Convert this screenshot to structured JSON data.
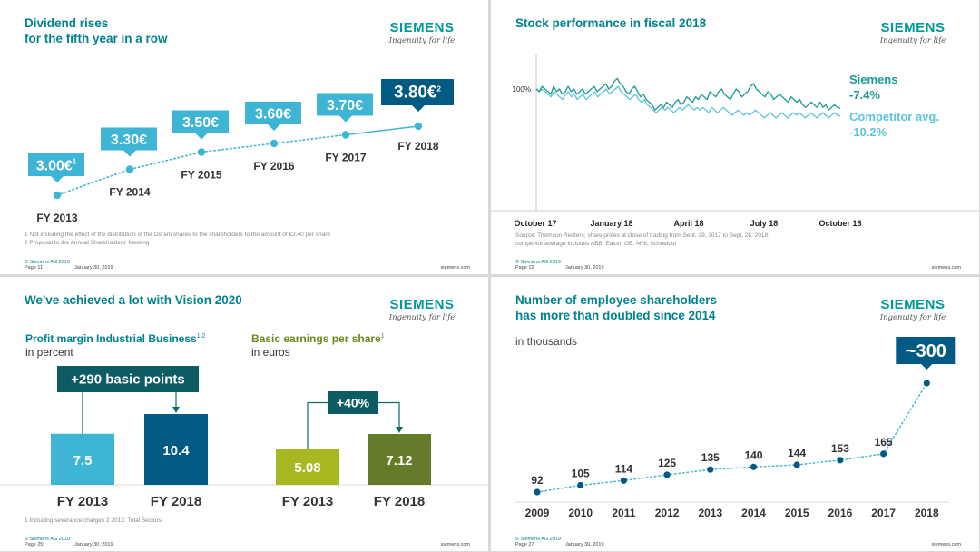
{
  "common": {
    "logo_word": "SIEMENS",
    "logo_tag": "Ingenuity for life",
    "copyright": "© Siemens AG 2019",
    "date": "January 30, 2019",
    "site": "siemens.com"
  },
  "slide1": {
    "title": "Dividend rises\nfor the fifth year in a row",
    "page": "Page 11",
    "notes": "1 Not including the effect of the distribution of the Osram shares to the shareholders to the amount of €2.40 per share\n2 Proposal to the Annual Shareholders' Meeting",
    "chart_data": {
      "type": "line",
      "categories": [
        "FY 2013",
        "FY 2014",
        "FY 2015",
        "FY 2016",
        "FY 2017",
        "FY 2018"
      ],
      "values": [
        3.0,
        3.3,
        3.5,
        3.6,
        3.7,
        3.8
      ],
      "value_labels": [
        "3.00€",
        "3.30€",
        "3.50€",
        "3.60€",
        "3.70€",
        "3.80€"
      ],
      "footnote_marks": [
        "1",
        "",
        "",
        "",
        "",
        "2"
      ],
      "colors": {
        "callout": "#3fb5d6",
        "final": "#005a84",
        "line": "#3fb5d6"
      }
    }
  },
  "slide2": {
    "title": "Stock performance in fiscal 2018",
    "page": "Page 12",
    "notes": "Source: Thomson Reuters; share prices at close of trading from Sept. 29, 2017 to Sept. 28, 2018;\ncompetitor average includes ABB, Eaton, GE, MHI, Schneider",
    "chart_data": {
      "type": "line",
      "y_tick_label": "100%",
      "x_tick_labels": [
        "October 17",
        "January 18",
        "April 18",
        "July 18",
        "October 18"
      ],
      "series": [
        {
          "name": "Siemens",
          "change": "-7.4%",
          "color": "#1a9a94",
          "values": [
            100,
            99,
            101,
            100,
            99,
            98,
            101,
            99,
            100,
            98,
            99,
            101,
            99,
            100,
            98,
            99,
            100,
            98,
            99,
            100,
            101,
            99,
            100,
            101,
            102,
            100,
            101,
            103,
            104,
            102,
            101,
            99,
            98,
            100,
            101,
            99,
            97,
            98,
            96,
            95,
            94,
            92,
            93,
            94,
            93,
            95,
            94,
            93,
            95,
            96,
            94,
            95,
            97,
            96,
            95,
            97,
            96,
            98,
            97,
            96,
            99,
            98,
            97,
            99,
            100,
            98,
            97,
            96,
            98,
            100,
            99,
            97,
            98,
            99,
            101,
            102,
            100,
            99,
            98,
            97,
            99,
            98,
            96,
            97,
            98,
            97,
            96,
            95,
            97,
            96,
            95,
            96,
            94,
            93,
            94,
            95,
            94,
            93,
            95,
            93,
            94,
            92,
            93,
            94,
            93,
            92.6
          ]
        },
        {
          "name": "Competitor avg.",
          "change": "-10.2%",
          "color": "#5cc4dc",
          "values": [
            100,
            99,
            100,
            99,
            98,
            97,
            99,
            98,
            97,
            96,
            98,
            99,
            97,
            98,
            96,
            97,
            98,
            96,
            97,
            98,
            99,
            97,
            98,
            99,
            100,
            98,
            99,
            100,
            101,
            99,
            98,
            97,
            96,
            97,
            98,
            96,
            95,
            96,
            94,
            93,
            92,
            91,
            92,
            93,
            92,
            93,
            92,
            91,
            92,
            93,
            92,
            93,
            94,
            93,
            92,
            93,
            92,
            93,
            92,
            91,
            93,
            92,
            91,
            92,
            93,
            92,
            91,
            90,
            91,
            92,
            91,
            90,
            91,
            90,
            91,
            92,
            91,
            90,
            89,
            90,
            91,
            90,
            89,
            90,
            91,
            90,
            89,
            90,
            91,
            90,
            91,
            90,
            89,
            90,
            91,
            90,
            89,
            90,
            91,
            90,
            89,
            90,
            91,
            90,
            89.8
          ]
        }
      ]
    }
  },
  "slide3": {
    "title": "We've achieved a lot with Vision 2020",
    "page": "Page 25",
    "notes": "1 Including severance charges     2 2013: Total Sectors",
    "left": {
      "heading": "Profit margin Industrial Business",
      "heading_sup": "1,2",
      "subheading": "in percent",
      "delta": "+290 basic points"
    },
    "right": {
      "heading": "Basic earnings per share",
      "heading_sup": "1",
      "subheading": "in euros",
      "delta": "+40%"
    },
    "chart_data": [
      {
        "type": "bar",
        "categories": [
          "FY 2013",
          "FY 2018"
        ],
        "values": [
          7.5,
          10.4
        ],
        "value_labels": [
          "7.5",
          "10.4"
        ],
        "colors": [
          "#3fb5d6",
          "#005a84"
        ]
      },
      {
        "type": "bar",
        "categories": [
          "FY 2013",
          "FY 2018"
        ],
        "values": [
          5.08,
          7.12
        ],
        "value_labels": [
          "5.08",
          "7.12"
        ],
        "colors": [
          "#a8b820",
          "#647b2a"
        ]
      }
    ]
  },
  "slide4": {
    "title": "Number of employee shareholders\nhas more than doubled since 2014",
    "page": "Page 27",
    "subtitle": "in thousands",
    "chart_data": {
      "type": "line",
      "categories": [
        "2009",
        "2010",
        "2011",
        "2012",
        "2013",
        "2014",
        "2015",
        "2016",
        "2017",
        "2018"
      ],
      "values": [
        92,
        105,
        114,
        125,
        135,
        140,
        144,
        153,
        165,
        300
      ],
      "value_labels": [
        "92",
        "105",
        "114",
        "125",
        "135",
        "140",
        "144",
        "153",
        "165",
        "~300"
      ],
      "colors": {
        "point": "#005a84",
        "line": "#3fb5d6",
        "callout": "#005a84"
      }
    }
  }
}
